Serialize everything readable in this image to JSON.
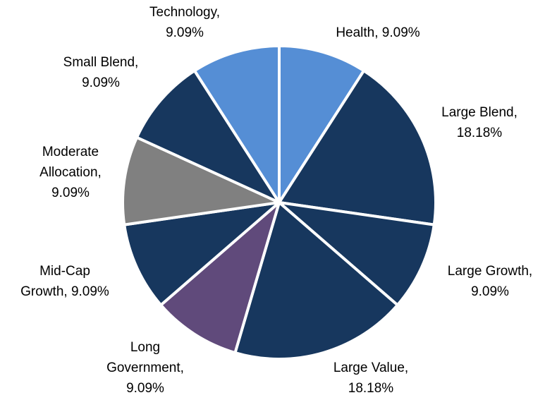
{
  "chart_data": {
    "type": "pie",
    "values": [
      9.09,
      18.18,
      9.09,
      18.18,
      9.09,
      9.09,
      9.09,
      9.09,
      9.09
    ],
    "value_labels": [
      [
        "Health, 9.09%"
      ],
      [
        "Large Blend,",
        "18.18%"
      ],
      [
        "Large Growth,",
        "9.09%"
      ],
      [
        "Large Value,",
        "18.18%"
      ],
      [
        "Long",
        "Government,",
        "9.09%"
      ],
      [
        "Mid-Cap",
        "Growth, 9.09%"
      ],
      [
        "Moderate",
        "Allocation,",
        "9.09%"
      ],
      [
        "Small Blend,",
        "9.09%"
      ],
      [
        "Technology,",
        "9.09%"
      ]
    ],
    "colors": [
      "#558ed5",
      "#17375e",
      "#17375e",
      "#17375e",
      "#604a7b",
      "#17375e",
      "#808080",
      "#17375e",
      "#558ed5"
    ]
  }
}
